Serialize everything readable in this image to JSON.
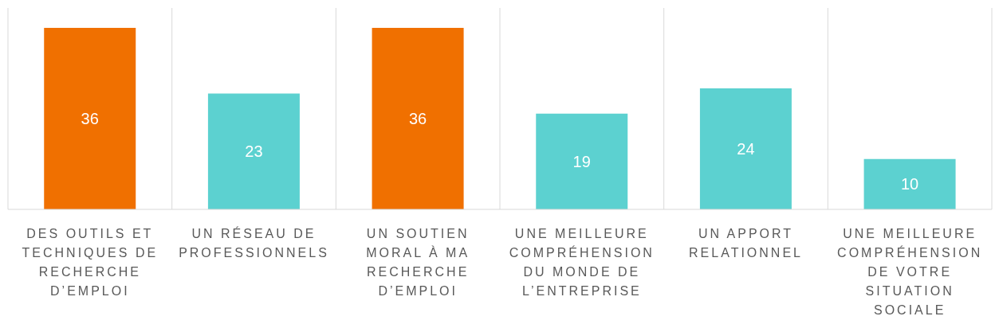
{
  "chart_data": {
    "type": "bar",
    "categories": [
      "DES OUTILS ET TECHNIQUES DE RECHERCHE D’EMPLOI",
      "UN RÉSEAU DE PROFESSIONNELS",
      "UN SOUTIEN MORAL À MA RECHERCHE D’EMPLOI",
      "UNE MEILLEURE COMPRÉHENSION DU MONDE DE L’ENTREPRISE",
      "UN APPORT RELATIONNEL",
      "UNE MEILLEURE COMPRÉHENSION DE VOTRE SITUATION SOCIALE"
    ],
    "values": [
      36,
      23,
      36,
      19,
      24,
      10
    ],
    "colors": [
      "#f07000",
      "#5cd1d0",
      "#f07000",
      "#5cd1d0",
      "#5cd1d0",
      "#5cd1d0"
    ],
    "data_labels": true,
    "grid": "x"
  }
}
